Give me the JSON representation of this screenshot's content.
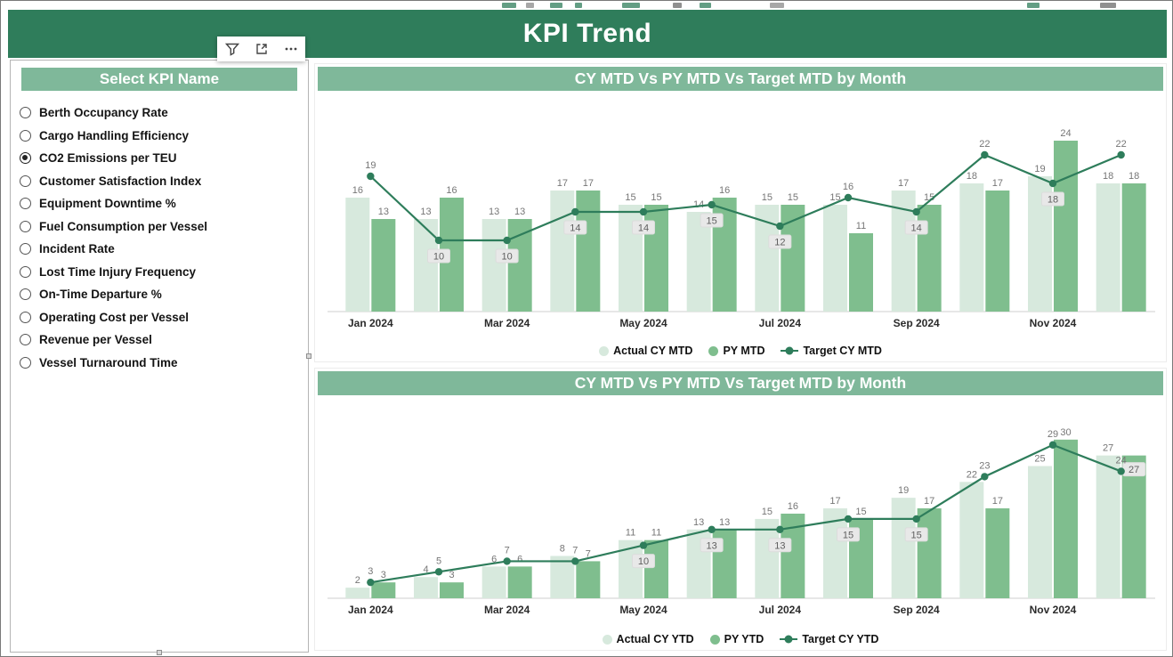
{
  "header": {
    "title": "KPI Trend"
  },
  "visual_toolbar": {
    "icons": [
      {
        "name": "filter-icon",
        "glyph": "funnel"
      },
      {
        "name": "focus-mode-icon",
        "glyph": "popout-arrow"
      },
      {
        "name": "more-options-icon",
        "glyph": "ellipsis"
      }
    ]
  },
  "slicer": {
    "title": "Select KPI Name",
    "items": [
      {
        "label": "Berth Occupancy Rate",
        "selected": false
      },
      {
        "label": "Cargo Handling Efficiency",
        "selected": false
      },
      {
        "label": "CO2 Emissions per TEU",
        "selected": true
      },
      {
        "label": "Customer Satisfaction Index",
        "selected": false
      },
      {
        "label": "Equipment Downtime %",
        "selected": false
      },
      {
        "label": "Fuel Consumption per Vessel",
        "selected": false
      },
      {
        "label": "Incident Rate",
        "selected": false
      },
      {
        "label": "Lost Time Injury Frequency",
        "selected": false
      },
      {
        "label": "On-Time Departure %",
        "selected": false
      },
      {
        "label": "Operating Cost per Vessel",
        "selected": false
      },
      {
        "label": "Revenue per Vessel",
        "selected": false
      },
      {
        "label": "Vessel Turnaround Time",
        "selected": false
      }
    ]
  },
  "colors": {
    "header_green": "#2F7D5B",
    "panel_green": "#7FB89A",
    "actual_bar": "#D7E9DD",
    "py_bar": "#7FBE8E",
    "target_line": "#2E7D5B",
    "label_gray": "#767676",
    "label_box_bg": "#E8E8E8"
  },
  "chart_data": [
    {
      "type": "combo-bar-line",
      "title": "CY MTD Vs PY MTD Vs Target MTD by Month",
      "categories": [
        "Jan 2024",
        "Feb 2024",
        "Mar 2024",
        "Apr 2024",
        "May 2024",
        "Jun 2024",
        "Jul 2024",
        "Aug 2024",
        "Sep 2024",
        "Oct 2024",
        "Nov 2024",
        "Dec 2024"
      ],
      "x_ticks_shown": [
        "Jan 2024",
        "Mar 2024",
        "May 2024",
        "Jul 2024",
        "Sep 2024",
        "Nov 2024"
      ],
      "ylim": [
        0,
        27
      ],
      "grid": false,
      "legend_position": "bottom",
      "series": [
        {
          "name": "Actual CY MTD",
          "kind": "bar",
          "color": "#D7E9DD",
          "values": [
            16,
            13,
            13,
            17,
            15,
            14,
            15,
            15,
            17,
            18,
            19,
            18
          ],
          "boxed_labels": [
            false,
            false,
            false,
            false,
            false,
            false,
            false,
            false,
            false,
            false,
            false,
            false
          ]
        },
        {
          "name": "PY MTD",
          "kind": "bar",
          "color": "#7FBE8E",
          "values": [
            13,
            16,
            13,
            17,
            15,
            16,
            15,
            11,
            15,
            17,
            24,
            18
          ],
          "boxed_labels": [
            false,
            false,
            false,
            false,
            false,
            false,
            false,
            false,
            false,
            false,
            false,
            false
          ]
        },
        {
          "name": "Target CY MTD",
          "kind": "line",
          "color": "#2E7D5B",
          "values": [
            19,
            10,
            10,
            14,
            14,
            15,
            12,
            16,
            14,
            22,
            18,
            22
          ],
          "boxed_labels": [
            false,
            true,
            true,
            true,
            true,
            true,
            true,
            false,
            true,
            false,
            true,
            false
          ]
        }
      ]
    },
    {
      "type": "combo-bar-line",
      "title": "CY MTD Vs PY MTD Vs Target MTD by Month",
      "categories": [
        "Jan 2024",
        "Feb 2024",
        "Mar 2024",
        "Apr 2024",
        "May 2024",
        "Jun 2024",
        "Jul 2024",
        "Aug 2024",
        "Sep 2024",
        "Oct 2024",
        "Nov 2024",
        "Dec 2024"
      ],
      "x_ticks_shown": [
        "Jan 2024",
        "Mar 2024",
        "May 2024",
        "Jul 2024",
        "Sep 2024",
        "Nov 2024"
      ],
      "ylim": [
        0,
        33
      ],
      "grid": false,
      "legend_position": "bottom",
      "series": [
        {
          "name": "Actual CY YTD",
          "kind": "bar",
          "color": "#D7E9DD",
          "values": [
            2,
            4,
            6,
            8,
            11,
            13,
            15,
            17,
            19,
            22,
            25,
            27
          ],
          "boxed_labels": [
            false,
            false,
            false,
            false,
            false,
            false,
            false,
            false,
            false,
            false,
            false,
            false
          ]
        },
        {
          "name": "PY YTD",
          "kind": "bar",
          "color": "#7FBE8E",
          "values": [
            3,
            3,
            6,
            7,
            11,
            13,
            16,
            15,
            17,
            17,
            30,
            27
          ],
          "boxed_labels": [
            false,
            false,
            false,
            false,
            false,
            false,
            false,
            false,
            false,
            false,
            false,
            true
          ]
        },
        {
          "name": "Target CY YTD",
          "kind": "line",
          "color": "#2E7D5B",
          "values": [
            3,
            5,
            7,
            7,
            10,
            13,
            13,
            15,
            15,
            23,
            29,
            24
          ],
          "boxed_labels": [
            false,
            false,
            false,
            false,
            true,
            true,
            true,
            true,
            true,
            false,
            false,
            false
          ]
        }
      ]
    }
  ],
  "decor": {
    "top_edge_marks": [
      {
        "x": 563,
        "w": 16,
        "color": "#2F7D5B"
      },
      {
        "x": 590,
        "w": 9,
        "color": "#8a8a8a"
      },
      {
        "x": 617,
        "w": 14,
        "color": "#2F7D5B"
      },
      {
        "x": 645,
        "w": 8,
        "color": "#2F7D5B"
      },
      {
        "x": 698,
        "w": 20,
        "color": "#2F7D5B"
      },
      {
        "x": 755,
        "w": 10,
        "color": "#6b6b6b"
      },
      {
        "x": 785,
        "w": 13,
        "color": "#2F7D5B"
      },
      {
        "x": 864,
        "w": 16,
        "color": "#8a8a8a"
      },
      {
        "x": 1153,
        "w": 14,
        "color": "#2F7D5B"
      },
      {
        "x": 1235,
        "w": 18,
        "color": "#6b6b6b"
      }
    ]
  }
}
